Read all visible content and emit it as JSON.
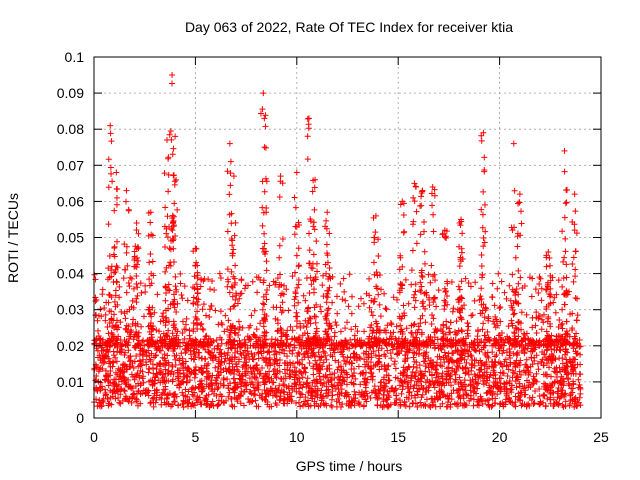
{
  "chart_data": {
    "type": "scatter",
    "title": "Day 063 of 2022, Rate Of TEC Index for receiver ktia",
    "xlabel": "GPS time / hours",
    "ylabel": "ROTI / TECUs",
    "xlim": [
      0,
      25
    ],
    "ylim": [
      0,
      0.1
    ],
    "xticks": [
      0,
      5,
      10,
      15,
      20,
      25
    ],
    "yticks": [
      0,
      0.01,
      0.02,
      0.03,
      0.04,
      0.05,
      0.06,
      0.07,
      0.08,
      0.09,
      0.1
    ],
    "xtick_labels": [
      "0",
      "5",
      "10",
      "15",
      "20",
      "25"
    ],
    "ytick_labels": [
      "0",
      "0.01",
      "0.02",
      "0.03",
      "0.04",
      "0.05",
      "0.06",
      "0.07",
      "0.08",
      "0.09",
      "0.1"
    ],
    "grid": true,
    "marker": "+",
    "color": "#ff0000",
    "x_range_of_data": [
      0,
      24
    ],
    "baseline_band": [
      0.005,
      0.02
    ],
    "peaks": [
      {
        "x": 0.8,
        "y": 0.081
      },
      {
        "x": 1.1,
        "y": 0.068
      },
      {
        "x": 1.6,
        "y": 0.063
      },
      {
        "x": 2.1,
        "y": 0.054
      },
      {
        "x": 2.8,
        "y": 0.057
      },
      {
        "x": 3.6,
        "y": 0.077
      },
      {
        "x": 3.85,
        "y": 0.095
      },
      {
        "x": 4.0,
        "y": 0.078
      },
      {
        "x": 5.0,
        "y": 0.047
      },
      {
        "x": 6.7,
        "y": 0.076
      },
      {
        "x": 6.9,
        "y": 0.067
      },
      {
        "x": 8.35,
        "y": 0.09
      },
      {
        "x": 8.4,
        "y": 0.083
      },
      {
        "x": 9.2,
        "y": 0.067
      },
      {
        "x": 10.0,
        "y": 0.068
      },
      {
        "x": 10.6,
        "y": 0.083
      },
      {
        "x": 10.9,
        "y": 0.066
      },
      {
        "x": 11.5,
        "y": 0.057
      },
      {
        "x": 13.9,
        "y": 0.056
      },
      {
        "x": 15.2,
        "y": 0.06
      },
      {
        "x": 15.8,
        "y": 0.065
      },
      {
        "x": 16.2,
        "y": 0.063
      },
      {
        "x": 16.7,
        "y": 0.064
      },
      {
        "x": 17.3,
        "y": 0.052
      },
      {
        "x": 18.1,
        "y": 0.055
      },
      {
        "x": 19.2,
        "y": 0.079
      },
      {
        "x": 20.7,
        "y": 0.076
      },
      {
        "x": 21.0,
        "y": 0.062
      },
      {
        "x": 22.4,
        "y": 0.046
      },
      {
        "x": 23.2,
        "y": 0.074
      },
      {
        "x": 23.7,
        "y": 0.062
      }
    ]
  }
}
